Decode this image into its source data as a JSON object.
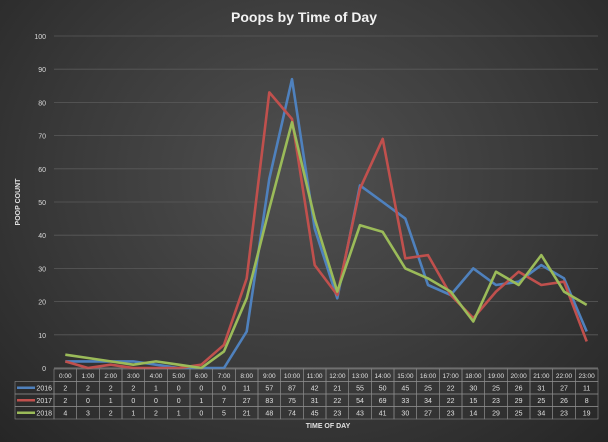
{
  "chart_data": {
    "type": "line",
    "title": "Poops  by Time of Day",
    "xlabel": "TIME OF DAY",
    "ylabel": "POOP COUNT",
    "ylim": [
      0,
      100
    ],
    "yticks": [
      0,
      10,
      20,
      30,
      40,
      50,
      60,
      70,
      80,
      90,
      100
    ],
    "grid": true,
    "legend": "data-table",
    "categories": [
      "0:00",
      "1:00",
      "2:00",
      "3:00",
      "4:00",
      "5:00",
      "6:00",
      "7:00",
      "8:00",
      "9:00",
      "10:00",
      "11:00",
      "12:00",
      "13:00",
      "14:00",
      "15:00",
      "16:00",
      "17:00",
      "18:00",
      "19:00",
      "20:00",
      "21:00",
      "22:00",
      "23:00"
    ],
    "series": [
      {
        "name": "2016",
        "color": "#4f81bd",
        "values": [
          2,
          2,
          2,
          2,
          1,
          0,
          0,
          0,
          11,
          57,
          87,
          42,
          21,
          55,
          50,
          45,
          25,
          22,
          30,
          25,
          26,
          31,
          27,
          11
        ]
      },
      {
        "name": "2017",
        "color": "#c0504d",
        "values": [
          2,
          0,
          1,
          0,
          0,
          0,
          1,
          7,
          27,
          83,
          75,
          31,
          22,
          54,
          69,
          33,
          34,
          22,
          15,
          23,
          29,
          25,
          26,
          8
        ]
      },
      {
        "name": "2018",
        "color": "#9bbb59",
        "values": [
          4,
          3,
          2,
          1,
          2,
          1,
          0,
          5,
          21,
          48,
          74,
          45,
          23,
          43,
          41,
          30,
          27,
          23,
          14,
          29,
          25,
          34,
          23,
          19
        ]
      }
    ]
  }
}
